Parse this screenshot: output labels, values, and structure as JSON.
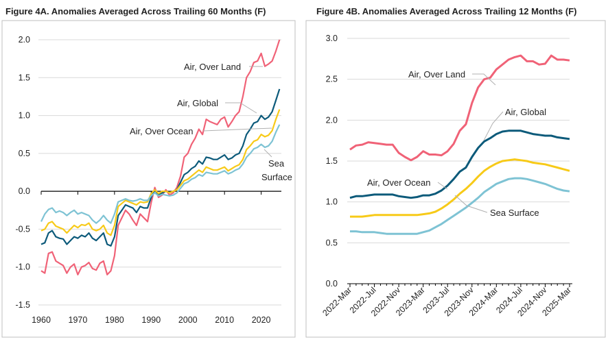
{
  "colors": {
    "air_over_land": "#f06277",
    "air_global": "#0c5a7a",
    "air_over_ocean": "#f7ca18",
    "sea_surface": "#7ec3d4"
  },
  "chart_data": [
    {
      "type": "line",
      "title": "Figure 4A. Anomalies Averaged Across Trailing 60 Months (F)",
      "xlabel": "",
      "ylabel": "",
      "xlim": [
        1960,
        2025.5
      ],
      "ylim": [
        -1.5,
        2.0
      ],
      "yticks": [
        "2.0",
        "1.5",
        "1.0",
        "0.5",
        "0.0",
        "-0.5",
        "-1.0",
        "-1.5"
      ],
      "xticks": [
        "1960",
        "1970",
        "1980",
        "1990",
        "2000",
        "2010",
        "2020"
      ],
      "annotations": [
        "Air, Over Land",
        "Air, Global",
        "Air, Over Ocean",
        "Sea",
        "Surface"
      ],
      "series": [
        {
          "name": "Air, Over Land",
          "color_key": "air_over_land",
          "x": [
            1960,
            1961,
            1962,
            1963,
            1964,
            1965,
            1966,
            1967,
            1968,
            1969,
            1970,
            1971,
            1972,
            1973,
            1974,
            1975,
            1976,
            1977,
            1978,
            1979,
            1980,
            1981,
            1982,
            1983,
            1984,
            1985,
            1986,
            1987,
            1988,
            1989,
            1990,
            1991,
            1992,
            1993,
            1994,
            1995,
            1996,
            1997,
            1998,
            1999,
            2000,
            2001,
            2002,
            2003,
            2004,
            2005,
            2006,
            2007,
            2008,
            2009,
            2010,
            2011,
            2012,
            2013,
            2014,
            2015,
            2016,
            2017,
            2018,
            2019,
            2020,
            2021,
            2022,
            2023,
            2024,
            2025
          ],
          "values": [
            -1.05,
            -1.08,
            -0.82,
            -0.8,
            -0.92,
            -0.95,
            -0.98,
            -1.08,
            -1.0,
            -0.96,
            -1.1,
            -1.0,
            -0.98,
            -0.94,
            -1.02,
            -1.04,
            -0.95,
            -0.92,
            -1.1,
            -1.05,
            -0.85,
            -0.45,
            -0.35,
            -0.25,
            -0.3,
            -0.38,
            -0.45,
            -0.3,
            -0.35,
            -0.4,
            -0.15,
            0.05,
            -0.08,
            -0.05,
            0.02,
            -0.05,
            -0.02,
            0.05,
            0.2,
            0.45,
            0.5,
            0.62,
            0.7,
            0.82,
            0.75,
            0.95,
            0.92,
            0.9,
            0.88,
            0.95,
            0.98,
            0.85,
            0.92,
            1.0,
            1.05,
            1.25,
            1.5,
            1.58,
            1.7,
            1.72,
            1.82,
            1.65,
            1.68,
            1.72,
            1.85,
            2.0
          ]
        },
        {
          "name": "Air, Global",
          "color_key": "air_global",
          "x": [
            1960,
            1961,
            1962,
            1963,
            1964,
            1965,
            1966,
            1967,
            1968,
            1969,
            1970,
            1971,
            1972,
            1973,
            1974,
            1975,
            1976,
            1977,
            1978,
            1979,
            1980,
            1981,
            1982,
            1983,
            1984,
            1985,
            1986,
            1987,
            1988,
            1989,
            1990,
            1991,
            1992,
            1993,
            1994,
            1995,
            1996,
            1997,
            1998,
            1999,
            2000,
            2001,
            2002,
            2003,
            2004,
            2005,
            2006,
            2007,
            2008,
            2009,
            2010,
            2011,
            2012,
            2013,
            2014,
            2015,
            2016,
            2017,
            2018,
            2019,
            2020,
            2021,
            2022,
            2023,
            2024,
            2025
          ],
          "values": [
            -0.7,
            -0.68,
            -0.55,
            -0.52,
            -0.6,
            -0.62,
            -0.63,
            -0.7,
            -0.65,
            -0.6,
            -0.62,
            -0.58,
            -0.6,
            -0.55,
            -0.62,
            -0.65,
            -0.6,
            -0.55,
            -0.7,
            -0.72,
            -0.6,
            -0.32,
            -0.25,
            -0.18,
            -0.2,
            -0.22,
            -0.28,
            -0.2,
            -0.22,
            -0.22,
            -0.08,
            0.02,
            -0.05,
            -0.02,
            0.0,
            -0.02,
            0.0,
            0.02,
            0.12,
            0.22,
            0.25,
            0.3,
            0.33,
            0.4,
            0.36,
            0.45,
            0.44,
            0.42,
            0.42,
            0.45,
            0.48,
            0.42,
            0.44,
            0.48,
            0.5,
            0.6,
            0.75,
            0.82,
            0.9,
            0.92,
            1.0,
            0.95,
            0.98,
            1.05,
            1.2,
            1.35
          ]
        },
        {
          "name": "Air, Over Ocean",
          "color_key": "air_over_ocean",
          "x": [
            1960,
            1961,
            1962,
            1963,
            1964,
            1965,
            1966,
            1967,
            1968,
            1969,
            1970,
            1971,
            1972,
            1973,
            1974,
            1975,
            1976,
            1977,
            1978,
            1979,
            1980,
            1981,
            1982,
            1983,
            1984,
            1985,
            1986,
            1987,
            1988,
            1989,
            1990,
            1991,
            1992,
            1993,
            1994,
            1995,
            1996,
            1997,
            1998,
            1999,
            2000,
            2001,
            2002,
            2003,
            2004,
            2005,
            2006,
            2007,
            2008,
            2009,
            2010,
            2011,
            2012,
            2013,
            2014,
            2015,
            2016,
            2017,
            2018,
            2019,
            2020,
            2021,
            2022,
            2023,
            2024,
            2025
          ],
          "values": [
            -0.52,
            -0.5,
            -0.42,
            -0.4,
            -0.46,
            -0.48,
            -0.5,
            -0.55,
            -0.5,
            -0.45,
            -0.48,
            -0.44,
            -0.45,
            -0.42,
            -0.5,
            -0.52,
            -0.5,
            -0.45,
            -0.55,
            -0.58,
            -0.45,
            -0.2,
            -0.16,
            -0.12,
            -0.14,
            -0.16,
            -0.18,
            -0.14,
            -0.15,
            -0.14,
            -0.03,
            0.02,
            -0.03,
            0.0,
            0.0,
            -0.02,
            0.0,
            0.02,
            0.08,
            0.14,
            0.16,
            0.2,
            0.24,
            0.28,
            0.25,
            0.32,
            0.3,
            0.28,
            0.28,
            0.3,
            0.32,
            0.27,
            0.3,
            0.33,
            0.35,
            0.42,
            0.55,
            0.6,
            0.66,
            0.68,
            0.75,
            0.72,
            0.74,
            0.8,
            0.95,
            1.08
          ]
        },
        {
          "name": "Sea Surface",
          "color_key": "sea_surface",
          "x": [
            1960,
            1961,
            1962,
            1963,
            1964,
            1965,
            1966,
            1967,
            1968,
            1969,
            1970,
            1971,
            1972,
            1973,
            1974,
            1975,
            1976,
            1977,
            1978,
            1979,
            1980,
            1981,
            1982,
            1983,
            1984,
            1985,
            1986,
            1987,
            1988,
            1989,
            1990,
            1991,
            1992,
            1993,
            1994,
            1995,
            1996,
            1997,
            1998,
            1999,
            2000,
            2001,
            2002,
            2003,
            2004,
            2005,
            2006,
            2007,
            2008,
            2009,
            2010,
            2011,
            2012,
            2013,
            2014,
            2015,
            2016,
            2017,
            2018,
            2019,
            2020,
            2021,
            2022,
            2023,
            2024,
            2025
          ],
          "values": [
            -0.4,
            -0.3,
            -0.24,
            -0.22,
            -0.28,
            -0.26,
            -0.28,
            -0.32,
            -0.28,
            -0.25,
            -0.3,
            -0.28,
            -0.3,
            -0.32,
            -0.38,
            -0.42,
            -0.38,
            -0.32,
            -0.38,
            -0.42,
            -0.3,
            -0.14,
            -0.12,
            -0.1,
            -0.12,
            -0.13,
            -0.12,
            -0.1,
            -0.12,
            -0.12,
            -0.06,
            -0.02,
            -0.06,
            -0.04,
            -0.05,
            -0.06,
            -0.05,
            -0.02,
            0.04,
            0.1,
            0.12,
            0.16,
            0.18,
            0.22,
            0.2,
            0.25,
            0.24,
            0.23,
            0.23,
            0.25,
            0.27,
            0.23,
            0.25,
            0.28,
            0.3,
            0.36,
            0.45,
            0.5,
            0.56,
            0.58,
            0.62,
            0.58,
            0.6,
            0.66,
            0.78,
            0.88
          ]
        }
      ]
    },
    {
      "type": "line",
      "title": "Figure 4B. Anomalies Averaged Across Trailing 12 Months (F)",
      "xlabel": "",
      "ylabel": "",
      "ylim": [
        0.0,
        3.0
      ],
      "yticks": [
        "3.0",
        "2.5",
        "2.0",
        "1.5",
        "1.0",
        "0.5",
        "0.0"
      ],
      "categories": [
        "2022-Mar",
        "2022-Apr",
        "2022-May",
        "2022-Jun",
        "2022-Jul",
        "2022-Aug",
        "2022-Sep",
        "2022-Oct",
        "2022-Nov",
        "2022-Dec",
        "2023-Jan",
        "2023-Feb",
        "2023-Mar",
        "2023-Apr",
        "2023-May",
        "2023-Jun",
        "2023-Jul",
        "2023-Aug",
        "2023-Sep",
        "2023-Oct",
        "2023-Nov",
        "2023-Dec",
        "2024-Jan",
        "2024-Feb",
        "2024-Mar",
        "2024-Apr",
        "2024-May",
        "2024-Jun",
        "2024-Jul",
        "2024-Aug",
        "2024-Sep",
        "2024-Oct",
        "2024-Nov",
        "2024-Dec",
        "2025-Jan",
        "2025-Feb",
        "2025-Mar"
      ],
      "xtick_labels": [
        "2022-Mar",
        "2022-Jul",
        "2022-Nov",
        "2023-Mar",
        "2023-Jul",
        "2023-Nov",
        "2024-Mar",
        "2024-Jul",
        "2024-Nov",
        "2025-Mar"
      ],
      "annotations": [
        "Air, Over Land",
        "Air, Global",
        "Air, Over Ocean",
        "Sea Surface"
      ],
      "series": [
        {
          "name": "Air, Over Land",
          "color_key": "air_over_land",
          "values": [
            1.64,
            1.69,
            1.7,
            1.73,
            1.72,
            1.71,
            1.7,
            1.7,
            1.6,
            1.55,
            1.51,
            1.55,
            1.62,
            1.58,
            1.58,
            1.57,
            1.62,
            1.71,
            1.87,
            1.95,
            2.21,
            2.4,
            2.5,
            2.52,
            2.62,
            2.68,
            2.74,
            2.77,
            2.79,
            2.72,
            2.72,
            2.68,
            2.69,
            2.79,
            2.74,
            2.74,
            2.73
          ]
        },
        {
          "name": "Air, Global",
          "color_key": "air_global",
          "values": [
            1.05,
            1.07,
            1.07,
            1.08,
            1.09,
            1.09,
            1.09,
            1.09,
            1.07,
            1.06,
            1.05,
            1.06,
            1.08,
            1.08,
            1.1,
            1.14,
            1.2,
            1.28,
            1.37,
            1.42,
            1.55,
            1.66,
            1.74,
            1.78,
            1.83,
            1.86,
            1.87,
            1.87,
            1.87,
            1.85,
            1.83,
            1.82,
            1.81,
            1.81,
            1.79,
            1.78,
            1.77
          ]
        },
        {
          "name": "Air, Over Ocean",
          "color_key": "air_over_ocean",
          "values": [
            0.82,
            0.82,
            0.82,
            0.83,
            0.84,
            0.84,
            0.84,
            0.84,
            0.84,
            0.84,
            0.84,
            0.84,
            0.85,
            0.86,
            0.88,
            0.92,
            0.97,
            1.03,
            1.1,
            1.16,
            1.23,
            1.31,
            1.38,
            1.43,
            1.47,
            1.5,
            1.51,
            1.52,
            1.51,
            1.5,
            1.48,
            1.47,
            1.46,
            1.44,
            1.42,
            1.4,
            1.38
          ]
        },
        {
          "name": "Sea Surface",
          "color_key": "sea_surface",
          "values": [
            0.64,
            0.64,
            0.63,
            0.63,
            0.63,
            0.62,
            0.61,
            0.61,
            0.61,
            0.61,
            0.61,
            0.61,
            0.63,
            0.65,
            0.69,
            0.73,
            0.78,
            0.83,
            0.88,
            0.93,
            0.99,
            1.05,
            1.12,
            1.17,
            1.22,
            1.25,
            1.28,
            1.29,
            1.29,
            1.28,
            1.26,
            1.24,
            1.22,
            1.19,
            1.16,
            1.14,
            1.13
          ]
        }
      ]
    }
  ]
}
